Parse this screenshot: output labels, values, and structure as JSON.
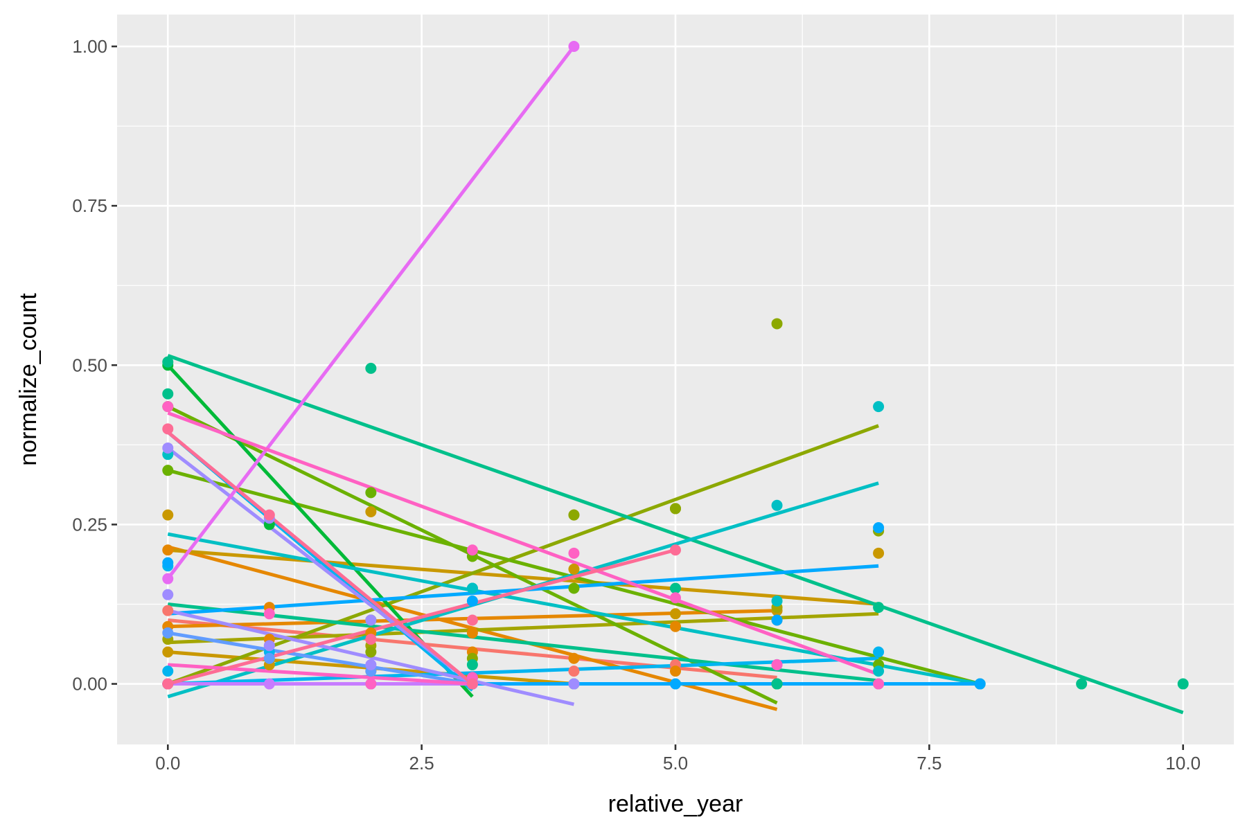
{
  "chart_data": {
    "type": "scatter",
    "title": "",
    "xlabel": "relative_year",
    "ylabel": "normalize_count",
    "xlim": [
      -0.5,
      10.5
    ],
    "ylim": [
      -0.095,
      1.05
    ],
    "x_ticks": [
      0.0,
      2.5,
      5.0,
      7.5,
      10.0
    ],
    "x_tick_labels": [
      "0.0",
      "2.5",
      "5.0",
      "7.5",
      "10.0"
    ],
    "y_ticks": [
      0.0,
      0.25,
      0.5,
      0.75,
      1.0
    ],
    "y_tick_labels": [
      "0.00",
      "0.25",
      "0.50",
      "0.75",
      "1.00"
    ],
    "grid": true,
    "legend": "none",
    "background": "#ebebeb",
    "grid_color": "#ffffff",
    "series": [
      {
        "color": "#f8766d",
        "points": [
          [
            0,
            0.115
          ],
          [
            1,
            0.06
          ],
          [
            2,
            0.07
          ],
          [
            3,
            0.01
          ],
          [
            4,
            0.02
          ],
          [
            5,
            0.03
          ]
        ],
        "fit": [
          [
            0,
            0.1
          ],
          [
            6,
            0.01
          ]
        ]
      },
      {
        "color": "#e58700",
        "points": [
          [
            0,
            0.21
          ],
          [
            1,
            0.12
          ],
          [
            2,
            0.08
          ],
          [
            3,
            0.05
          ],
          [
            4,
            0.04
          ],
          [
            5,
            0.02
          ],
          [
            6,
            0.0
          ]
        ],
        "fit": [
          [
            0,
            0.215
          ],
          [
            6,
            -0.04
          ]
        ]
      },
      {
        "color": "#e58700",
        "points": [
          [
            0,
            0.09
          ],
          [
            1,
            0.07
          ],
          [
            2,
            0.1
          ],
          [
            3,
            0.08
          ],
          [
            5,
            0.09
          ],
          [
            6,
            0.1
          ]
        ],
        "fit": [
          [
            0,
            0.09
          ],
          [
            6,
            0.115
          ]
        ]
      },
      {
        "color": "#c99800",
        "points": [
          [
            0,
            0.265
          ],
          [
            2,
            0.27
          ],
          [
            4,
            0.18
          ],
          [
            5,
            0.11
          ],
          [
            6,
            0.115
          ],
          [
            7,
            0.205
          ]
        ],
        "fit": [
          [
            0,
            0.21
          ],
          [
            7,
            0.125
          ]
        ]
      },
      {
        "color": "#c99800",
        "points": [
          [
            0,
            0.05
          ],
          [
            1,
            0.03
          ],
          [
            2,
            0.02
          ],
          [
            3,
            0.01
          ],
          [
            4,
            0.0
          ]
        ],
        "fit": [
          [
            0,
            0.05
          ],
          [
            4,
            0.0
          ]
        ]
      },
      {
        "color": "#a3a500",
        "points": [
          [
            0,
            0.07
          ],
          [
            2,
            0.06
          ],
          [
            4,
            0.265
          ],
          [
            5,
            0.275
          ],
          [
            6,
            0.12
          ],
          [
            7,
            0.24
          ]
        ],
        "fit": [
          [
            0,
            0.065
          ],
          [
            7,
            0.11
          ]
        ]
      },
      {
        "color": "#8ca800",
        "points": [
          [
            0,
            0.0
          ],
          [
            2,
            0.05
          ],
          [
            3,
            0.04
          ],
          [
            4,
            0.265
          ],
          [
            5,
            0.275
          ],
          [
            6,
            0.565
          ],
          [
            7,
            0.24
          ]
        ],
        "fit": [
          [
            0,
            0.0
          ],
          [
            7,
            0.405
          ]
        ]
      },
      {
        "color": "#6bb100",
        "points": [
          [
            0,
            0.335
          ],
          [
            3,
            0.2
          ],
          [
            7,
            0.03
          ],
          [
            8,
            0.0
          ]
        ],
        "fit": [
          [
            0,
            0.335
          ],
          [
            8,
            0.0
          ]
        ]
      },
      {
        "color": "#6bb100",
        "points": [
          [
            0,
            0.435
          ],
          [
            2,
            0.3
          ],
          [
            4,
            0.15
          ],
          [
            6,
            0.0
          ]
        ],
        "fit": [
          [
            0,
            0.435
          ],
          [
            6,
            -0.03
          ]
        ]
      },
      {
        "color": "#00ba38",
        "points": [
          [
            0,
            0.5
          ],
          [
            1,
            0.25
          ],
          [
            2,
            0.1
          ],
          [
            3,
            0.0
          ]
        ],
        "fit": [
          [
            0,
            0.5
          ],
          [
            3,
            -0.02
          ]
        ]
      },
      {
        "color": "#00c08b",
        "points": [
          [
            0,
            0.505
          ],
          [
            2,
            0.495
          ],
          [
            5,
            0.15
          ],
          [
            7,
            0.12
          ],
          [
            9,
            0.0
          ],
          [
            10,
            0.0
          ]
        ],
        "fit": [
          [
            0,
            0.515
          ],
          [
            10,
            -0.045
          ]
        ]
      },
      {
        "color": "#00c08b",
        "points": [
          [
            0,
            0.455
          ],
          [
            3,
            0.03
          ],
          [
            6,
            0.0
          ],
          [
            7,
            0.0
          ]
        ],
        "fit": [
          [
            0,
            0.125
          ],
          [
            7,
            0.005
          ]
        ]
      },
      {
        "color": "#00bfc4",
        "points": [
          [
            0,
            0.36
          ],
          [
            3,
            0.15
          ],
          [
            6,
            0.13
          ],
          [
            7,
            0.02
          ],
          [
            8,
            0.0
          ]
        ],
        "fit": [
          [
            0,
            0.235
          ],
          [
            8,
            0.0
          ]
        ]
      },
      {
        "color": "#00bfc4",
        "points": [
          [
            0,
            0.0
          ],
          [
            3,
            0.15
          ],
          [
            6,
            0.28
          ],
          [
            7,
            0.435
          ]
        ],
        "fit": [
          [
            0,
            -0.02
          ],
          [
            7,
            0.315
          ]
        ]
      },
      {
        "color": "#00b4f0",
        "points": [
          [
            0,
            0.185
          ],
          [
            1,
            0.05
          ],
          [
            2,
            0.0
          ],
          [
            3,
            0.0
          ],
          [
            4,
            0.0
          ]
        ],
        "fit": [
          [
            0,
            0.395
          ],
          [
            3,
            -0.01
          ]
        ]
      },
      {
        "color": "#00b4f0",
        "points": [
          [
            0,
            0.02
          ],
          [
            3,
            0.01
          ],
          [
            6,
            0.03
          ],
          [
            7,
            0.05
          ]
        ],
        "fit": [
          [
            0,
            0.0
          ],
          [
            7,
            0.04
          ]
        ]
      },
      {
        "color": "#00a9ff",
        "points": [
          [
            0,
            0.19
          ],
          [
            3,
            0.13
          ],
          [
            6,
            0.1
          ],
          [
            7,
            0.245
          ]
        ],
        "fit": [
          [
            0,
            0.11
          ],
          [
            7,
            0.185
          ]
        ]
      },
      {
        "color": "#00a9ff",
        "points": [
          [
            0,
            0.0
          ],
          [
            3,
            0.0
          ],
          [
            5,
            0.0
          ],
          [
            8,
            0.0
          ]
        ],
        "fit": [
          [
            0,
            0.0
          ],
          [
            8,
            0.0
          ]
        ]
      },
      {
        "color": "#619cff",
        "points": [
          [
            0,
            0.08
          ],
          [
            1,
            0.04
          ],
          [
            2,
            0.02
          ],
          [
            3,
            0.0
          ]
        ],
        "fit": [
          [
            0,
            0.08
          ],
          [
            3,
            0.0
          ]
        ]
      },
      {
        "color": "#9f8cff",
        "points": [
          [
            0,
            0.14
          ],
          [
            1,
            0.06
          ],
          [
            2,
            0.03
          ],
          [
            3,
            0.0
          ],
          [
            4,
            0.0
          ]
        ],
        "fit": [
          [
            0,
            0.115
          ],
          [
            4,
            -0.032
          ]
        ]
      },
      {
        "color": "#9f8cff",
        "points": [
          [
            0,
            0.37
          ],
          [
            1,
            0.26
          ],
          [
            2,
            0.1
          ],
          [
            3,
            0.0
          ]
        ],
        "fit": [
          [
            0,
            0.37
          ],
          [
            3,
            0.0
          ]
        ]
      },
      {
        "color": "#c77cff",
        "points": [
          [
            0,
            0.0
          ],
          [
            1,
            0.0
          ],
          [
            2,
            0.0
          ],
          [
            3,
            0.0
          ]
        ],
        "fit": [
          [
            0,
            0.0
          ],
          [
            3,
            0.0
          ]
        ]
      },
      {
        "color": "#e76bf3",
        "points": [
          [
            0,
            0.165
          ],
          [
            4,
            1.0
          ]
        ],
        "fit": [
          [
            0,
            0.165
          ],
          [
            4,
            1.0
          ]
        ]
      },
      {
        "color": "#ff61c3",
        "points": [
          [
            0,
            0.435
          ],
          [
            3,
            0.21
          ],
          [
            4,
            0.205
          ],
          [
            5,
            0.135
          ],
          [
            6,
            0.03
          ],
          [
            7,
            0.0
          ]
        ],
        "fit": [
          [
            0,
            0.425
          ],
          [
            7,
            0.015
          ]
        ]
      },
      {
        "color": "#ff61c3",
        "points": [
          [
            0,
            0.0
          ],
          [
            1,
            0.11
          ],
          [
            2,
            0.0
          ],
          [
            3,
            0.01
          ]
        ],
        "fit": [
          [
            0,
            0.03
          ],
          [
            3,
            0.0
          ]
        ]
      },
      {
        "color": "#fd6c95",
        "points": [
          [
            0,
            0.4
          ],
          [
            1,
            0.265
          ],
          [
            2,
            0.07
          ],
          [
            3,
            0.0
          ]
        ],
        "fit": [
          [
            0,
            0.395
          ],
          [
            3,
            0.0
          ]
        ]
      },
      {
        "color": "#fd6c95",
        "points": [
          [
            0,
            0.0
          ],
          [
            3,
            0.1
          ],
          [
            5,
            0.21
          ]
        ],
        "fit": [
          [
            0,
            0.0
          ],
          [
            5,
            0.21
          ]
        ]
      }
    ]
  }
}
